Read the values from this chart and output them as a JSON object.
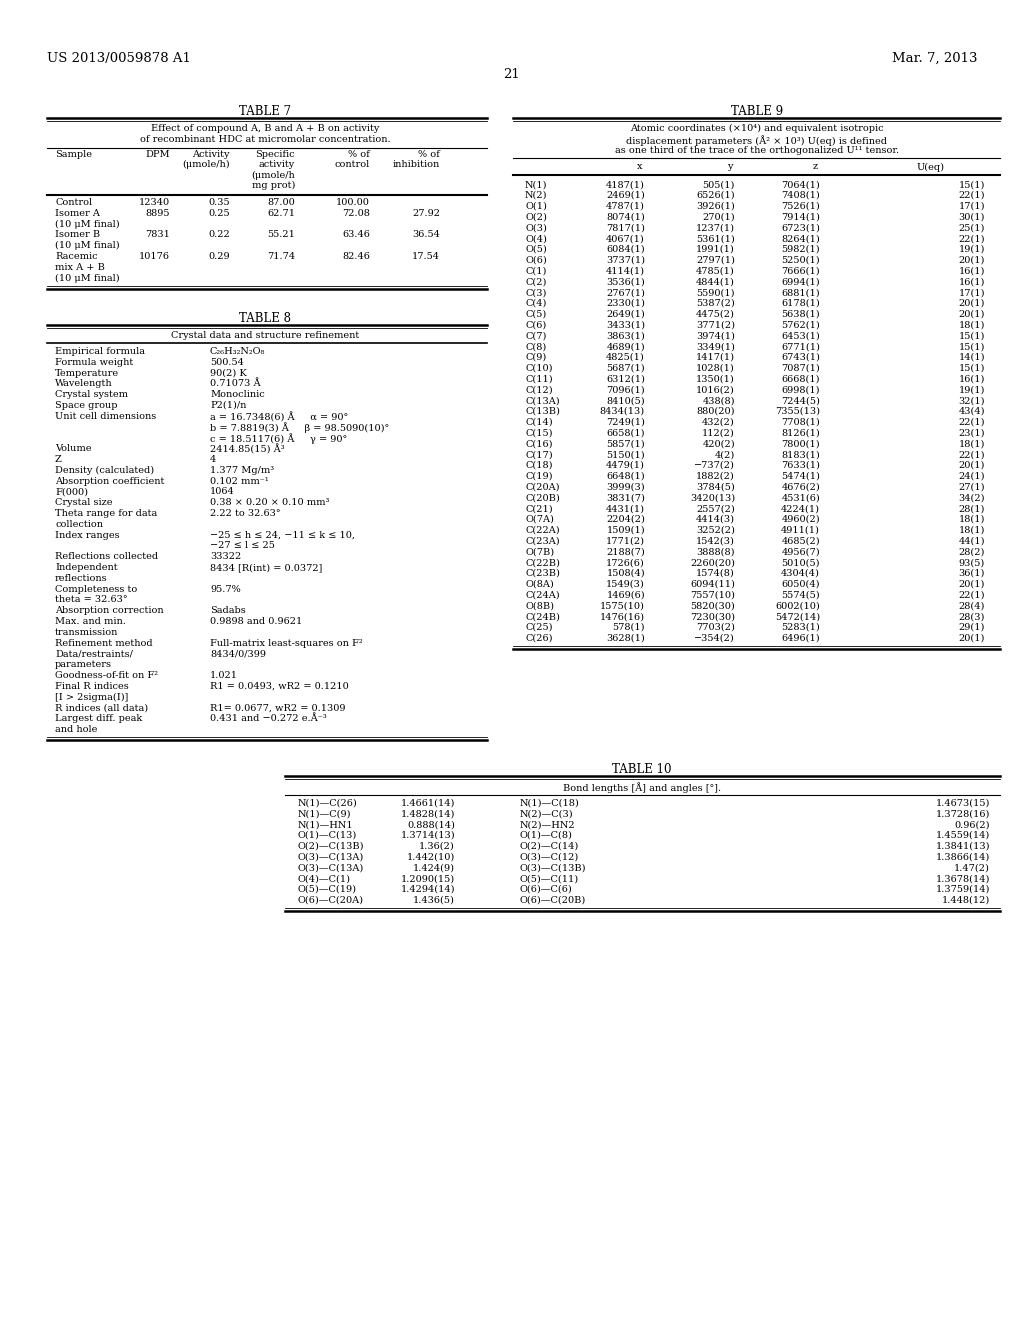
{
  "bg_color": "#ffffff",
  "text_color": "#000000",
  "header_left": "US 2013/0059878 A1",
  "header_right": "Mar. 7, 2013",
  "page_num": "21",
  "table7_title": "TABLE 7",
  "table7_subtitle1": "Effect of compound A, B and A + B on activity",
  "table7_subtitle2": "of recombinant HDC at micromolar concentration.",
  "table8_title": "TABLE 8",
  "table8_subtitle": "Crystal data and structure refinement",
  "table8_rows": [
    [
      "Empirical formula",
      "C₂₆H₃₂N₂O₈"
    ],
    [
      "Formula weight",
      "500.54"
    ],
    [
      "Temperature",
      "90(2) K"
    ],
    [
      "Wavelength",
      "0.71073 Å"
    ],
    [
      "Crystal system",
      "Monoclinic"
    ],
    [
      "Space group",
      "P2(1)/n"
    ],
    [
      "Unit cell dimensions",
      "a = 16.7348(6) Å     α = 90°"
    ],
    [
      "",
      "b = 7.8819(3) Å     β = 98.5090(10)°"
    ],
    [
      "",
      "c = 18.5117(6) Å     γ = 90°"
    ],
    [
      "Volume",
      "2414.85(15) Å³"
    ],
    [
      "Z",
      "4"
    ],
    [
      "Density (calculated)",
      "1.377 Mg/m³"
    ],
    [
      "Absorption coefficient",
      "0.102 mm⁻¹"
    ],
    [
      "F(000)",
      "1064"
    ],
    [
      "Crystal size",
      "0.38 × 0.20 × 0.10 mm³"
    ],
    [
      "Theta range for data",
      "2.22 to 32.63°"
    ],
    [
      "collection",
      ""
    ],
    [
      "Index ranges",
      "−25 ≤ h ≤ 24, −11 ≤ k ≤ 10,"
    ],
    [
      "",
      "−27 ≤ l ≤ 25"
    ],
    [
      "Reflections collected",
      "33322"
    ],
    [
      "Independent",
      "8434 [R(int) = 0.0372]"
    ],
    [
      "reflections",
      ""
    ],
    [
      "Completeness to",
      "95.7%"
    ],
    [
      "theta = 32.63°",
      ""
    ],
    [
      "Absorption correction",
      "Sadabs"
    ],
    [
      "Max. and min.",
      "0.9898 and 0.9621"
    ],
    [
      "transmission",
      ""
    ],
    [
      "Refinement method",
      "Full-matrix least-squares on F²"
    ],
    [
      "Data/restraints/",
      "8434/0/399"
    ],
    [
      "parameters",
      ""
    ],
    [
      "Goodness-of-fit on F²",
      "1.021"
    ],
    [
      "Final R indices",
      "R1 = 0.0493, wR2 = 0.1210"
    ],
    [
      "[I > 2sigma(I)]",
      ""
    ],
    [
      "R indices (all data)",
      "R1= 0.0677, wR2 = 0.1309"
    ],
    [
      "Largest diff. peak",
      "0.431 and −0.272 e.Å⁻³"
    ],
    [
      "and hole",
      ""
    ]
  ],
  "table9_title": "TABLE 9",
  "table9_subtitle1": "Atomic coordinates (×10⁴) and equivalent isotropic",
  "table9_subtitle2": "displacement parameters (Å² × 10³) U(eq) is defined",
  "table9_subtitle3": "as one third of the trace of the orthogonalized U¹¹ tensor.",
  "table9_col_headers": [
    "",
    "x",
    "y",
    "z",
    "U(eq)"
  ],
  "table9_rows": [
    [
      "N(1)",
      "4187(1)",
      "505(1)",
      "7064(1)",
      "15(1)"
    ],
    [
      "N(2)",
      "2469(1)",
      "6526(1)",
      "7408(1)",
      "22(1)"
    ],
    [
      "O(1)",
      "4787(1)",
      "3926(1)",
      "7526(1)",
      "17(1)"
    ],
    [
      "O(2)",
      "8074(1)",
      "270(1)",
      "7914(1)",
      "30(1)"
    ],
    [
      "O(3)",
      "7817(1)",
      "1237(1)",
      "6723(1)",
      "25(1)"
    ],
    [
      "O(4)",
      "4067(1)",
      "5361(1)",
      "8264(1)",
      "22(1)"
    ],
    [
      "O(5)",
      "6084(1)",
      "1991(1)",
      "5982(1)",
      "19(1)"
    ],
    [
      "O(6)",
      "3737(1)",
      "2797(1)",
      "5250(1)",
      "20(1)"
    ],
    [
      "C(1)",
      "4114(1)",
      "4785(1)",
      "7666(1)",
      "16(1)"
    ],
    [
      "C(2)",
      "3536(1)",
      "4844(1)",
      "6994(1)",
      "16(1)"
    ],
    [
      "C(3)",
      "2767(1)",
      "5590(1)",
      "6881(1)",
      "17(1)"
    ],
    [
      "C(4)",
      "2330(1)",
      "5387(2)",
      "6178(1)",
      "20(1)"
    ],
    [
      "C(5)",
      "2649(1)",
      "4475(2)",
      "5638(1)",
      "20(1)"
    ],
    [
      "C(6)",
      "3433(1)",
      "3771(2)",
      "5762(1)",
      "18(1)"
    ],
    [
      "C(7)",
      "3863(1)",
      "3974(1)",
      "6453(1)",
      "15(1)"
    ],
    [
      "C(8)",
      "4689(1)",
      "3349(1)",
      "6771(1)",
      "15(1)"
    ],
    [
      "C(9)",
      "4825(1)",
      "1417(1)",
      "6743(1)",
      "14(1)"
    ],
    [
      "C(10)",
      "5687(1)",
      "1028(1)",
      "7087(1)",
      "15(1)"
    ],
    [
      "C(11)",
      "6312(1)",
      "1350(1)",
      "6668(1)",
      "16(1)"
    ],
    [
      "C(12)",
      "7096(1)",
      "1016(2)",
      "6998(1)",
      "19(1)"
    ],
    [
      "C(13A)",
      "8410(5)",
      "438(8)",
      "7244(5)",
      "32(1)"
    ],
    [
      "C(13B)",
      "8434(13)",
      "880(20)",
      "7355(13)",
      "43(4)"
    ],
    [
      "C(14)",
      "7249(1)",
      "432(2)",
      "7708(1)",
      "22(1)"
    ],
    [
      "C(15)",
      "6658(1)",
      "112(2)",
      "8126(1)",
      "23(1)"
    ],
    [
      "C(16)",
      "5857(1)",
      "420(2)",
      "7800(1)",
      "18(1)"
    ],
    [
      "C(17)",
      "5150(1)",
      "4(2)",
      "8183(1)",
      "22(1)"
    ],
    [
      "C(18)",
      "4479(1)",
      "−737(2)",
      "7633(1)",
      "20(1)"
    ],
    [
      "C(19)",
      "6648(1)",
      "1882(2)",
      "5474(1)",
      "24(1)"
    ],
    [
      "C(20A)",
      "3999(3)",
      "3784(5)",
      "4676(2)",
      "27(1)"
    ],
    [
      "C(20B)",
      "3831(7)",
      "3420(13)",
      "4531(6)",
      "34(2)"
    ],
    [
      "C(21)",
      "4431(1)",
      "2557(2)",
      "4224(1)",
      "28(1)"
    ],
    [
      "O(7A)",
      "2204(2)",
      "4414(3)",
      "4960(2)",
      "18(1)"
    ],
    [
      "C(22A)",
      "1509(1)",
      "3252(2)",
      "4911(1)",
      "18(1)"
    ],
    [
      "C(23A)",
      "1771(2)",
      "1542(3)",
      "4685(2)",
      "44(1)"
    ],
    [
      "O(7B)",
      "2188(7)",
      "3888(8)",
      "4956(7)",
      "28(2)"
    ],
    [
      "C(22B)",
      "1726(6)",
      "2260(20)",
      "5010(5)",
      "93(5)"
    ],
    [
      "C(23B)",
      "1508(4)",
      "1574(8)",
      "4304(4)",
      "36(1)"
    ],
    [
      "O(8A)",
      "1549(3)",
      "6094(11)",
      "6050(4)",
      "20(1)"
    ],
    [
      "C(24A)",
      "1469(6)",
      "7557(10)",
      "5574(5)",
      "22(1)"
    ],
    [
      "O(8B)",
      "1575(10)",
      "5820(30)",
      "6002(10)",
      "28(4)"
    ],
    [
      "C(24B)",
      "1476(16)",
      "7230(30)",
      "5472(14)",
      "28(3)"
    ],
    [
      "C(25)",
      "578(1)",
      "7703(2)",
      "5283(1)",
      "29(1)"
    ],
    [
      "C(26)",
      "3628(1)",
      "−354(2)",
      "6496(1)",
      "20(1)"
    ]
  ],
  "table10_title": "TABLE 10",
  "table10_subtitle": "Bond lengths [Å] and angles [°].",
  "table10_rows": [
    [
      "N(1)—C(26)",
      "1.4661(14)",
      "N(1)—C(18)",
      "1.4673(15)"
    ],
    [
      "N(1)—C(9)",
      "1.4828(14)",
      "N(2)—C(3)",
      "1.3728(16)"
    ],
    [
      "N(1)—HN1",
      "0.888(14)",
      "N(2)—HN2",
      "0.96(2)"
    ],
    [
      "O(1)—C(13)",
      "1.3714(13)",
      "O(1)—C(8)",
      "1.4559(14)"
    ],
    [
      "O(2)—C(13B)",
      "1.36(2)",
      "O(2)—C(14)",
      "1.3841(13)"
    ],
    [
      "O(3)—C(13A)",
      "1.442(10)",
      "O(3)—C(12)",
      "1.3866(14)"
    ],
    [
      "O(3)—C(13A)",
      "1.424(9)",
      "O(3)—C(13B)",
      "1.47(2)"
    ],
    [
      "O(4)—C(1)",
      "1.2090(15)",
      "O(5)—C(11)",
      "1.3678(14)"
    ],
    [
      "O(5)—C(19)",
      "1.4294(14)",
      "O(6)—C(6)",
      "1.3759(14)"
    ],
    [
      "O(6)—C(20A)",
      "1.436(5)",
      "O(6)—C(20B)",
      "1.448(12)"
    ]
  ]
}
